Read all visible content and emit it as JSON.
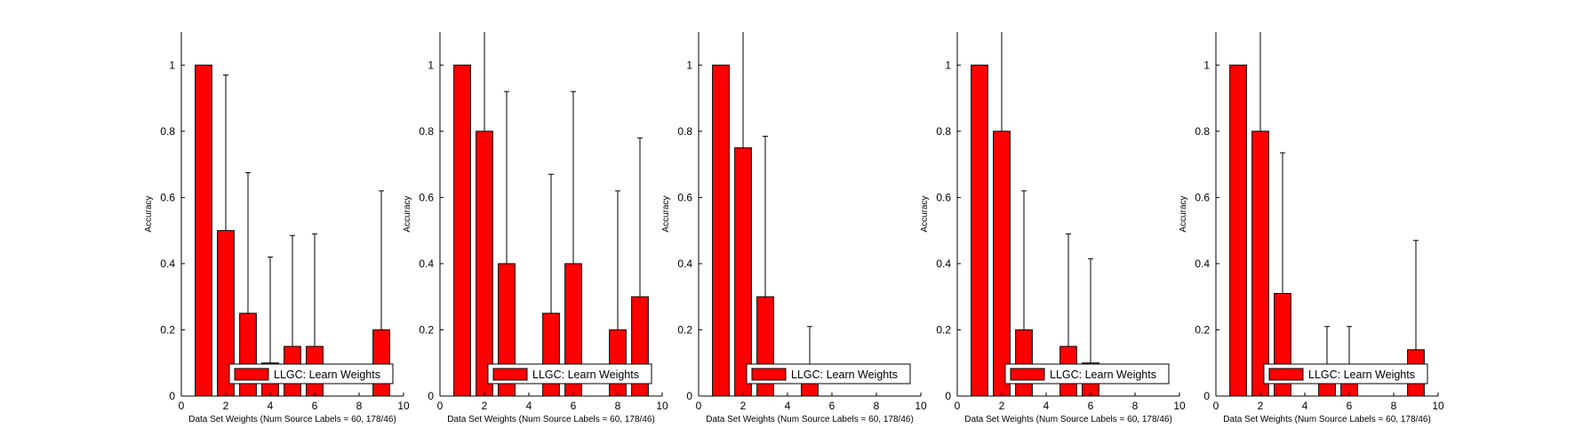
{
  "chart_data": [
    {
      "type": "bar",
      "title": "",
      "xlabel": "Data Set Weights (Num Source Labels = 60, 178/46)",
      "ylabel": "Accuracy",
      "xlim": [
        0,
        10
      ],
      "ylim": [
        0,
        1.1
      ],
      "xticks": [
        "0",
        "2",
        "4",
        "6",
        "8",
        "10"
      ],
      "yticks": [
        "0",
        "0.2",
        "0.4",
        "0.6",
        "0.8",
        "1"
      ],
      "grid": false,
      "legend": "bottom-right",
      "series": [
        {
          "name": "LLGC: Learn Weights",
          "color": "#ff0000",
          "x": [
            1,
            2,
            3,
            4,
            5,
            6,
            7,
            8,
            9
          ],
          "values": [
            1.0,
            0.5,
            0.25,
            0.1,
            0.15,
            0.15,
            0.0,
            0.0,
            0.2
          ],
          "error_upper": [
            0.0,
            0.97,
            0.675,
            0.42,
            0.485,
            0.49,
            0.0,
            0.0,
            0.62
          ]
        }
      ]
    },
    {
      "type": "bar",
      "title": "",
      "xlabel": "Data Set Weights (Num Source Labels = 60, 178/46)",
      "ylabel": "Accuracy",
      "xlim": [
        0,
        10
      ],
      "ylim": [
        0,
        1.1
      ],
      "xticks": [
        "0",
        "2",
        "4",
        "6",
        "8",
        "10"
      ],
      "yticks": [
        "0",
        "0.2",
        "0.4",
        "0.6",
        "0.8",
        "1"
      ],
      "grid": false,
      "legend": "bottom-right",
      "series": [
        {
          "name": "LLGC: Learn Weights",
          "color": "#ff0000",
          "x": [
            1,
            2,
            3,
            4,
            5,
            6,
            7,
            8,
            9
          ],
          "values": [
            1.0,
            0.8,
            0.4,
            0.0,
            0.25,
            0.4,
            0.0,
            0.2,
            0.3
          ],
          "error_upper": [
            0.0,
            1.1,
            0.92,
            0.0,
            0.67,
            0.92,
            0.0,
            0.62,
            0.78
          ]
        }
      ]
    },
    {
      "type": "bar",
      "title": "",
      "xlabel": "Data Set Weights (Num Source Labels = 60, 178/46)",
      "ylabel": "Accuracy",
      "xlim": [
        0,
        10
      ],
      "ylim": [
        0,
        1.1
      ],
      "xticks": [
        "0",
        "2",
        "4",
        "6",
        "8",
        "10"
      ],
      "yticks": [
        "0",
        "0.2",
        "0.4",
        "0.6",
        "0.8",
        "1"
      ],
      "grid": false,
      "legend": "bottom-right",
      "series": [
        {
          "name": "LLGC: Learn Weights",
          "color": "#ff0000",
          "x": [
            1,
            2,
            3,
            4,
            5,
            6,
            7,
            8,
            9
          ],
          "values": [
            1.0,
            0.75,
            0.3,
            0.0,
            0.05,
            0.0,
            0.0,
            0.0,
            0.0
          ],
          "error_upper": [
            0.0,
            1.1,
            0.785,
            0.0,
            0.21,
            0.0,
            0.0,
            0.0,
            0.0
          ]
        }
      ]
    },
    {
      "type": "bar",
      "title": "",
      "xlabel": "Data Set Weights (Num Source Labels = 60, 178/46)",
      "ylabel": "Accuracy",
      "xlim": [
        0,
        10
      ],
      "ylim": [
        0,
        1.1
      ],
      "xticks": [
        "0",
        "2",
        "4",
        "6",
        "8",
        "10"
      ],
      "yticks": [
        "0",
        "0.2",
        "0.4",
        "0.6",
        "0.8",
        "1"
      ],
      "grid": false,
      "legend": "bottom-right",
      "series": [
        {
          "name": "LLGC: Learn Weights",
          "color": "#ff0000",
          "x": [
            1,
            2,
            3,
            4,
            5,
            6,
            7,
            8,
            9
          ],
          "values": [
            1.0,
            0.8,
            0.2,
            0.0,
            0.15,
            0.1,
            0.0,
            0.0,
            0.0
          ],
          "error_upper": [
            0.0,
            1.1,
            0.62,
            0.0,
            0.49,
            0.415,
            0.0,
            0.0,
            0.0
          ]
        }
      ]
    },
    {
      "type": "bar",
      "title": "",
      "xlabel": "Data Set Weights (Num Source Labels = 60, 178/46)",
      "ylabel": "Accuracy",
      "xlim": [
        0,
        10
      ],
      "ylim": [
        0,
        1.1
      ],
      "xticks": [
        "0",
        "2",
        "4",
        "6",
        "8",
        "10"
      ],
      "yticks": [
        "0",
        "0.2",
        "0.4",
        "0.6",
        "0.8",
        "1"
      ],
      "grid": false,
      "legend": "bottom-right",
      "series": [
        {
          "name": "LLGC: Learn Weights",
          "color": "#ff0000",
          "x": [
            1,
            2,
            3,
            4,
            5,
            6,
            7,
            8,
            9
          ],
          "values": [
            1.0,
            0.8,
            0.31,
            0.0,
            0.05,
            0.05,
            0.0,
            0.0,
            0.14
          ],
          "error_upper": [
            0.0,
            1.1,
            0.735,
            0.0,
            0.21,
            0.21,
            0.0,
            0.0,
            0.47
          ]
        }
      ]
    }
  ]
}
